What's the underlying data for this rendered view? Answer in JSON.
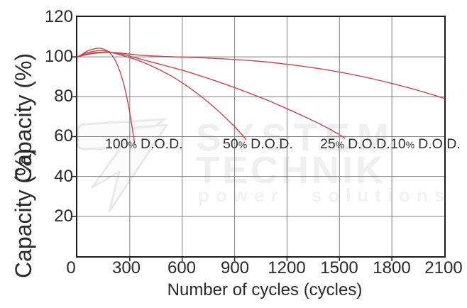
{
  "colors": {
    "curve": "#c2474f",
    "grid": "#7f7f7f",
    "frame": "#1b1b1b",
    "text": "#2a2a2a",
    "watermark": "#efefef"
  },
  "y_axis": {
    "label": "Capacity (%)",
    "label_overlap": "Capacity (%)",
    "ticks": [
      "120",
      "100",
      "80",
      "60",
      "40",
      "20"
    ]
  },
  "x_axis": {
    "label": "Number of cycles (cycles)",
    "ticks": [
      "0",
      "300",
      "600",
      "900",
      "1200",
      "1500",
      "1800",
      "2100"
    ]
  },
  "curve_labels": [
    {
      "value": "100",
      "pct": "%",
      "name": "D.O.D."
    },
    {
      "value": "50",
      "pct": "%",
      "name": "D.O.D."
    },
    {
      "value": "25",
      "pct": "%",
      "name": "D.O.D."
    },
    {
      "value": "10",
      "pct": "%",
      "name": "D.O.D."
    }
  ],
  "watermark": {
    "word1": "SYSTEM",
    "word2": "TECHNIK",
    "tagline": "power solutions"
  },
  "chart_data": {
    "type": "line",
    "title": "",
    "xlabel": "Number of cycles (cycles)",
    "ylabel": "Capacity (%)",
    "xlim": [
      0,
      2100
    ],
    "ylim": [
      0,
      120
    ],
    "x_ticks": [
      0,
      300,
      600,
      900,
      1200,
      1500,
      1800,
      2100
    ],
    "y_ticks": [
      0,
      20,
      40,
      60,
      80,
      100,
      120
    ],
    "grid": true,
    "legend_position": "inline labels below 60% gridline",
    "series": [
      {
        "name": "100% D.O.D.",
        "color": "#c2474f",
        "points": [
          [
            0,
            100
          ],
          [
            25,
            101.2
          ],
          [
            55,
            102.8
          ],
          [
            85,
            103.8
          ],
          [
            115,
            104.3
          ],
          [
            140,
            104.2
          ],
          [
            165,
            103.3
          ],
          [
            185,
            102
          ],
          [
            205,
            100
          ],
          [
            225,
            96.8
          ],
          [
            245,
            92.3
          ],
          [
            265,
            86.5
          ],
          [
            285,
            79
          ],
          [
            300,
            72
          ],
          [
            312,
            65.5
          ],
          [
            322,
            60
          ],
          [
            328,
            56.5
          ]
        ]
      },
      {
        "name": "50% D.O.D.",
        "color": "#c2474f",
        "points": [
          [
            0,
            100
          ],
          [
            30,
            101.3
          ],
          [
            70,
            102.4
          ],
          [
            110,
            103
          ],
          [
            150,
            103.1
          ],
          [
            190,
            102.4
          ],
          [
            230,
            101.4
          ],
          [
            270,
            100.4
          ],
          [
            300,
            99.6
          ],
          [
            350,
            98.2
          ],
          [
            400,
            96.4
          ],
          [
            450,
            94.4
          ],
          [
            500,
            92.2
          ],
          [
            550,
            89.8
          ],
          [
            600,
            87
          ],
          [
            650,
            84
          ],
          [
            700,
            80.7
          ],
          [
            750,
            77.2
          ],
          [
            800,
            73.4
          ],
          [
            850,
            69.3
          ],
          [
            900,
            65
          ],
          [
            940,
            61.2
          ],
          [
            965,
            58.5
          ]
        ]
      },
      {
        "name": "25% D.O.D.",
        "color": "#c2474f",
        "points": [
          [
            0,
            100
          ],
          [
            30,
            100.9
          ],
          [
            70,
            101.7
          ],
          [
            110,
            102.2
          ],
          [
            150,
            102.4
          ],
          [
            200,
            102.2
          ],
          [
            250,
            101.5
          ],
          [
            300,
            100.4
          ],
          [
            350,
            99.2
          ],
          [
            400,
            98
          ],
          [
            500,
            95.7
          ],
          [
            600,
            93.3
          ],
          [
            700,
            90.6
          ],
          [
            800,
            87.7
          ],
          [
            900,
            84.6
          ],
          [
            1000,
            81.3
          ],
          [
            1100,
            77.8
          ],
          [
            1200,
            74
          ],
          [
            1300,
            70
          ],
          [
            1400,
            65.8
          ],
          [
            1480,
            62
          ],
          [
            1530,
            59.3
          ]
        ]
      },
      {
        "name": "10% D.O.D.",
        "color": "#c2474f",
        "points": [
          [
            0,
            100
          ],
          [
            40,
            100.9
          ],
          [
            90,
            101.7
          ],
          [
            150,
            102.2
          ],
          [
            210,
            102.2
          ],
          [
            270,
            101.7
          ],
          [
            330,
            101.1
          ],
          [
            400,
            100.6
          ],
          [
            500,
            100.2
          ],
          [
            600,
            99.9
          ],
          [
            700,
            99.6
          ],
          [
            800,
            99.2
          ],
          [
            900,
            98.7
          ],
          [
            1000,
            98.1
          ],
          [
            1100,
            97.3
          ],
          [
            1200,
            96.3
          ],
          [
            1300,
            95.2
          ],
          [
            1400,
            93.9
          ],
          [
            1500,
            92.4
          ],
          [
            1600,
            90.7
          ],
          [
            1700,
            88.8
          ],
          [
            1800,
            86.7
          ],
          [
            1900,
            84.4
          ],
          [
            2000,
            81.9
          ],
          [
            2100,
            79.2
          ]
        ]
      }
    ]
  }
}
